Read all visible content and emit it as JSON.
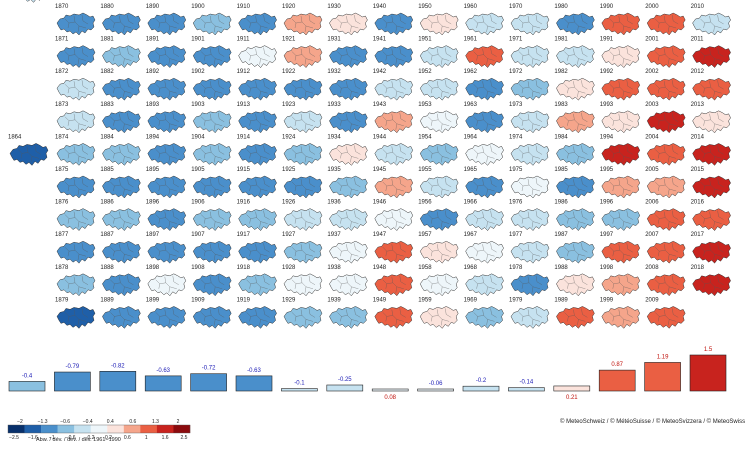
{
  "chart_data": {
    "type": "heatmap",
    "title": "",
    "description_note": "",
    "map_years": [
      1864,
      1865,
      1866,
      1867,
      1868,
      1869,
      1870,
      1871,
      1872,
      1873,
      1874,
      1875,
      1876,
      1877,
      1878,
      1879,
      1880,
      1881,
      1882,
      1883,
      1884,
      1885,
      1886,
      1887,
      1888,
      1889,
      1890,
      1891,
      1892,
      1893,
      1894,
      1895,
      1896,
      1897,
      1898,
      1899,
      1900,
      1901,
      1902,
      1903,
      1904,
      1905,
      1906,
      1907,
      1908,
      1909,
      1910,
      1911,
      1912,
      1913,
      1914,
      1915,
      1916,
      1917,
      1918,
      1919,
      1920,
      1921,
      1922,
      1923,
      1924,
      1925,
      1926,
      1927,
      1928,
      1929,
      1930,
      1931,
      1932,
      1933,
      1934,
      1935,
      1936,
      1937,
      1938,
      1939,
      1940,
      1941,
      1942,
      1943,
      1944,
      1945,
      1946,
      1947,
      1948,
      1949,
      1950,
      1951,
      1952,
      1953,
      1954,
      1955,
      1956,
      1957,
      1958,
      1959,
      1960,
      1961,
      1962,
      1963,
      1964,
      1965,
      1966,
      1967,
      1968,
      1969,
      1970,
      1971,
      1972,
      1973,
      1974,
      1975,
      1976,
      1977,
      1978,
      1979,
      1980,
      1981,
      1982,
      1983,
      1984,
      1985,
      1986,
      1987,
      1988,
      1989,
      1990,
      1991,
      1992,
      1993,
      1994,
      1995,
      1996,
      1997,
      1998,
      1999,
      2000,
      2001,
      2002,
      2003,
      2004,
      2005,
      2006,
      2007,
      2008,
      2009,
      2010,
      2011,
      2012,
      2013,
      2014,
      2015,
      2016,
      2017,
      2018
    ],
    "anomalies": {
      "1864": -1.6,
      "1865": -0.5,
      "1866": -0.2,
      "1867": -0.6,
      "1868": -0.3,
      "1869": -0.3,
      "1870": -0.6,
      "1871": -1.1,
      "1872": -0.1,
      "1873": -0.3,
      "1874": -0.4,
      "1875": -0.6,
      "1876": -0.5,
      "1877": -0.6,
      "1878": -0.4,
      "1879": -1.3,
      "1880": -0.6,
      "1881": -0.4,
      "1882": -0.7,
      "1883": -0.8,
      "1884": -0.5,
      "1885": -0.7,
      "1886": -0.5,
      "1887": -1.1,
      "1888": -1.0,
      "1889": -0.9,
      "1890": -1.2,
      "1891": -1.0,
      "1892": -0.8,
      "1893": -0.6,
      "1894": -0.6,
      "1895": -1.1,
      "1896": -0.9,
      "1897": -0.6,
      "1898": 0.1,
      "1899": -0.6,
      "1900": -0.5,
      "1901": -0.9,
      "1902": -0.8,
      "1903": -0.5,
      "1904": -0.5,
      "1905": -0.8,
      "1906": -0.5,
      "1907": -0.7,
      "1908": -0.9,
      "1909": -1.0,
      "1910": -0.7,
      "1911": 0.1,
      "1912": -0.9,
      "1913": -0.6,
      "1914": -0.6,
      "1915": -0.6,
      "1916": -0.5,
      "1917": -0.9,
      "1918": -0.4,
      "1919": -0.9,
      "1920": 0.5,
      "1921": 0.6,
      "1922": -0.9,
      "1923": -0.3,
      "1924": -0.4,
      "1925": -0.6,
      "1926": -0.3,
      "1927": -0.4,
      "1928": 0.0,
      "1929": -0.5,
      "1930": 0.3,
      "1931": -0.7,
      "1932": -0.6,
      "1933": -0.6,
      "1934": 0.4,
      "1935": -0.5,
      "1936": -0.2,
      "1937": 0.0,
      "1938": 0.0,
      "1939": -0.5,
      "1940": -0.9,
      "1941": -1.0,
      "1942": -0.2,
      "1943": 0.5,
      "1944": -0.3,
      "1945": 0.5,
      "1946": 0.1,
      "1947": 0.9,
      "1948": 0.8,
      "1949": 0.8,
      "1950": 0.4,
      "1951": -0.1,
      "1952": -0.2,
      "1953": 0.0,
      "1954": -0.5,
      "1955": -0.1,
      "1956": -1.2,
      "1957": 0.2,
      "1958": 0.1,
      "1959": 0.4,
      "1960": -0.1,
      "1961": 0.7,
      "1962": -1.0,
      "1963": -0.9,
      "1964": 0.0,
      "1965": -0.9,
      "1966": -0.1,
      "1967": 0.0,
      "1968": -0.2,
      "1969": -0.4,
      "1970": -0.3,
      "1971": -0.1,
      "1972": -0.5,
      "1973": -0.2,
      "1974": -0.1,
      "1975": 0.0,
      "1976": -0.2,
      "1977": -0.1,
      "1978": -0.6,
      "1979": -0.3,
      "1980": -0.6,
      "1981": -0.2,
      "1982": 0.4,
      "1983": 0.6,
      "1984": -0.4,
      "1985": -0.7,
      "1986": -0.4,
      "1987": -0.4,
      "1988": 0.3,
      "1989": 0.8,
      "1990": 0.8,
      "1991": 0.3,
      "1992": 0.7,
      "1993": 0.4,
      "1994": 1.5,
      "1995": 0.5,
      "1996": -0.4,
      "1997": 0.7,
      "1998": 0.6,
      "1999": 0.5,
      "2000": 1.1,
      "2001": 0.7,
      "2002": 1.0,
      "2003": 1.6,
      "2004": 0.9,
      "2005": 0.5,
      "2006": 1.2,
      "2007": 1.1,
      "2008": 0.8,
      "2009": 1.1,
      "2010": -0.2,
      "2011": 1.6,
      "2012": 1.1,
      "2013": 0.4,
      "2014": 1.6,
      "2015": 1.7,
      "2016": 1.1,
      "2017": 1.4,
      "2018": 2.0
    },
    "decades": [
      {
        "label": "-0.4",
        "value": -0.4
      },
      {
        "label": "-0.79",
        "value": -0.79
      },
      {
        "label": "-0.82",
        "value": -0.82
      },
      {
        "label": "-0.63",
        "value": -0.63
      },
      {
        "label": "-0.72",
        "value": -0.72
      },
      {
        "label": "-0.63",
        "value": -0.63
      },
      {
        "label": "-0.1",
        "value": -0.1
      },
      {
        "label": "-0.25",
        "value": -0.25
      },
      {
        "label": "0.08",
        "value": 0.08
      },
      {
        "label": "-0.06",
        "value": -0.06
      },
      {
        "label": "-0.2",
        "value": -0.2
      },
      {
        "label": "-0.14",
        "value": -0.14
      },
      {
        "label": "0.21",
        "value": 0.21
      },
      {
        "label": "0.87",
        "value": 0.87
      },
      {
        "label": "1.19",
        "value": 1.19
      },
      {
        "label": "1.5",
        "value": 1.5
      }
    ],
    "colorbar": {
      "upper_ticks": [
        "−2",
        "−1.3",
        "−0.6",
        "−0.4",
        "0.4",
        "0.6",
        "1.3",
        "2"
      ],
      "lower_ticks": [
        "−2.5",
        "−1.6",
        "−1",
        "−0.6",
        "−0.2",
        "0.2",
        "0.6",
        "1",
        "1.6",
        "2.5"
      ],
      "colors": [
        "#08306b",
        "#1f5fa8",
        "#4a8fcb",
        "#8ac0e0",
        "#c6e2f0",
        "#eef6fa",
        "#fbe3dc",
        "#f5a58b",
        "#ea5f43",
        "#c8231e",
        "#8b0b0e"
      ],
      "caption": "Abw. / dév. / dev. / dev. 1961−1990"
    },
    "colors": {
      "neutral_fill": "#ffffff",
      "decade_border": "#222222",
      "negative_label": "#1a1ab5",
      "positive_label": "#c0120c"
    },
    "copyright": "© MeteoSchweiz / © MétéoSuisse / © MeteoSvizzera / © MeteoSwiss"
  }
}
